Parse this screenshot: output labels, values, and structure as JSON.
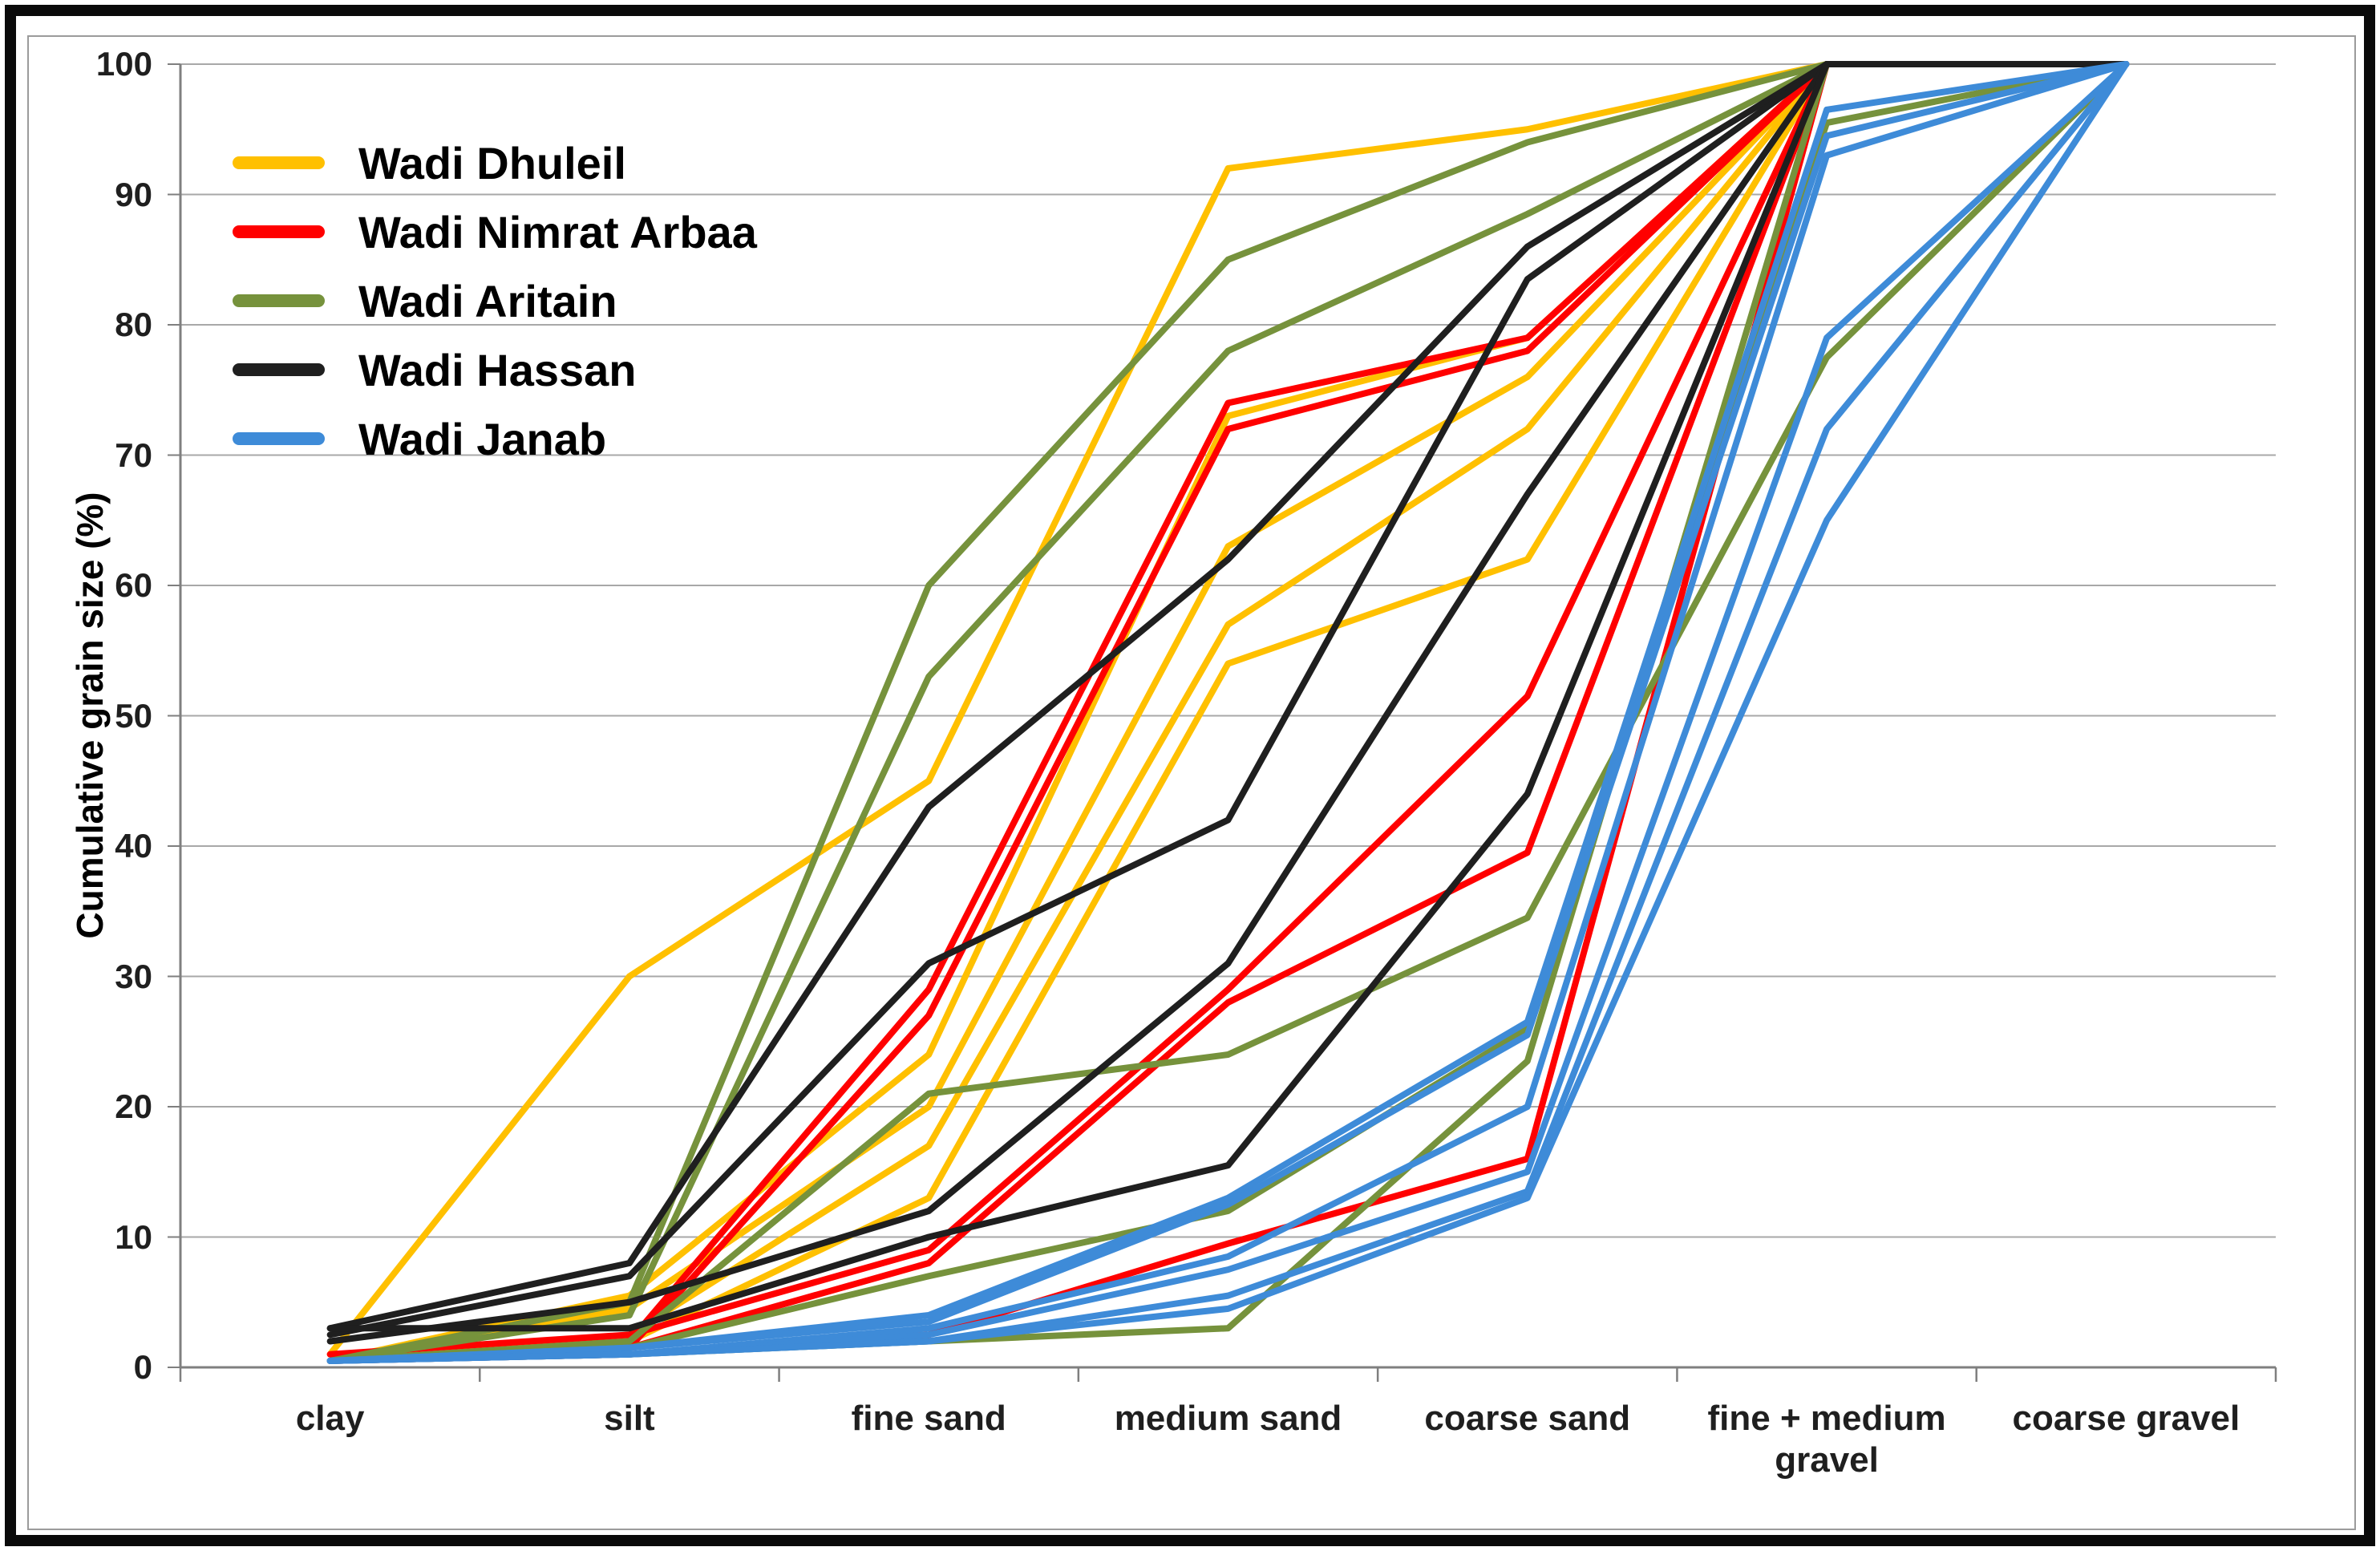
{
  "chart_data": {
    "type": "line",
    "ylabel": "Cumulative grain size (%)",
    "ylim": [
      0,
      100
    ],
    "yticks": [
      0,
      10,
      20,
      30,
      40,
      50,
      60,
      70,
      80,
      90,
      100
    ],
    "grid": "horizontal",
    "legend_position": "top-left",
    "categories": [
      "clay",
      "silt",
      "fine sand",
      "medium sand",
      "coarse sand",
      "fine + medium\ngravel",
      "coarse gravel"
    ],
    "series": [
      {
        "name": "Wadi Dhuleil",
        "color": "#FFC000",
        "lines": [
          [
            1,
            30,
            45,
            92,
            95,
            100,
            100
          ],
          [
            0.5,
            5.5,
            24,
            73,
            79,
            100,
            100
          ],
          [
            0.5,
            4.5,
            20,
            63,
            76,
            100,
            100
          ],
          [
            0.5,
            2.5,
            17,
            57,
            72,
            100,
            100
          ],
          [
            0.5,
            2,
            13,
            54,
            62,
            100,
            100
          ]
        ]
      },
      {
        "name": "Wadi Nimrat Arbaa",
        "color": "#FF0000",
        "lines": [
          [
            0.5,
            2,
            29,
            74,
            79,
            100,
            100
          ],
          [
            0.5,
            1.5,
            27,
            72,
            78,
            100,
            100
          ],
          [
            1,
            2.5,
            9,
            29,
            51.5,
            100,
            100
          ],
          [
            0.5,
            1.5,
            8,
            28,
            39.5,
            100,
            100
          ],
          [
            0.5,
            1,
            2.5,
            9.5,
            16,
            100,
            100
          ]
        ]
      },
      {
        "name": "Wadi Aritain",
        "color": "#76923C",
        "lines": [
          [
            0.5,
            5,
            60,
            85,
            94,
            100,
            100
          ],
          [
            0.5,
            4,
            53,
            78,
            88.5,
            100,
            100
          ],
          [
            0.5,
            2,
            21,
            24,
            34.5,
            77.5,
            100
          ],
          [
            0.5,
            1.5,
            7,
            12,
            26,
            95.5,
            100
          ],
          [
            0.5,
            1,
            2,
            3,
            23.5,
            100,
            100
          ]
        ]
      },
      {
        "name": "Wadi Hassan",
        "color": "#1f1f1f",
        "lines": [
          [
            3,
            8,
            43,
            62,
            86,
            100,
            100
          ],
          [
            2.5,
            7,
            31,
            42,
            83.5,
            100,
            100
          ],
          [
            2,
            5,
            12,
            31,
            67,
            100,
            100
          ],
          [
            3,
            3,
            10,
            15.5,
            44,
            100,
            100
          ]
        ]
      },
      {
        "name": "Wadi Janab",
        "color": "#3E8BD8",
        "lines": [
          [
            0.5,
            1.5,
            4,
            13,
            26.5,
            96.5,
            100
          ],
          [
            0.5,
            1.5,
            3.5,
            12.5,
            25.5,
            94.5,
            100
          ],
          [
            0.5,
            1,
            3,
            8.5,
            20,
            93,
            100
          ],
          [
            0.5,
            1,
            2.5,
            7.5,
            15,
            79,
            100
          ],
          [
            0.5,
            1,
            2,
            5.5,
            13.5,
            72,
            100
          ],
          [
            0.5,
            1,
            2,
            4.5,
            13,
            65,
            100
          ]
        ]
      }
    ]
  }
}
